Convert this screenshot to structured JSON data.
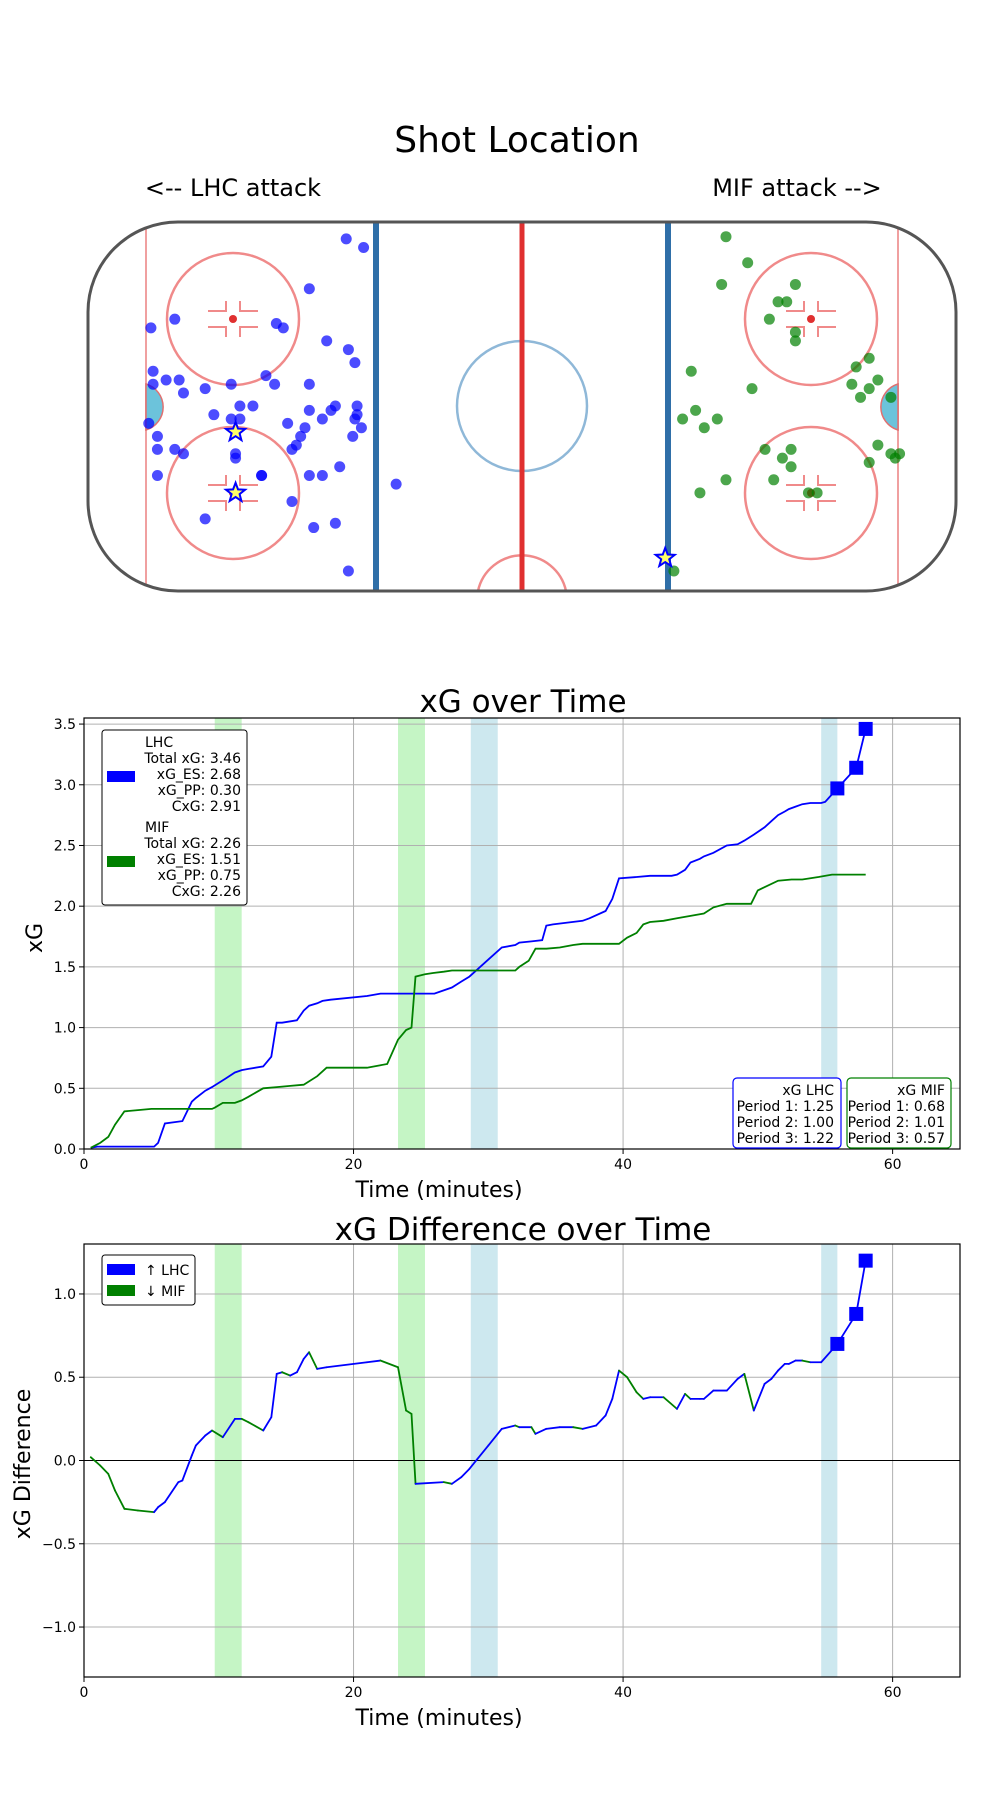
{
  "colors": {
    "lhc": "#0000ff",
    "mif": "#008000",
    "pp_band": "#c5f5c5",
    "pk_band": "#cde8ef",
    "rink_red": "#e03030",
    "rink_blue": "#2f6fa8",
    "crease": "#6cc3db"
  },
  "chart_data": [
    {
      "type": "scatter",
      "title": "Shot Location",
      "left_label": "<-- LHC attack",
      "right_label": "MIF attack -->",
      "xlim": [
        -100,
        100
      ],
      "ylim": [
        -42.5,
        42.5
      ],
      "series": [
        {
          "name": "LHC",
          "color": "#0000ff",
          "points": [
            [
              -40.5,
              38.5
            ],
            [
              -36.5,
              36.5
            ],
            [
              -49,
              27
            ],
            [
              -56.6,
              19
            ],
            [
              -55,
              18
            ],
            [
              -85.5,
              18
            ],
            [
              -80,
              20
            ],
            [
              -40,
              13
            ],
            [
              -45,
              15
            ],
            [
              -38.5,
              10
            ],
            [
              -85,
              8
            ],
            [
              -82,
              6
            ],
            [
              -79,
              6
            ],
            [
              -78,
              3
            ],
            [
              -85,
              5
            ],
            [
              -73,
              4
            ],
            [
              -67,
              5
            ],
            [
              -65,
              0
            ],
            [
              -67,
              -3
            ],
            [
              -71,
              -2
            ],
            [
              -59,
              7
            ],
            [
              -57,
              5
            ],
            [
              -49,
              5
            ],
            [
              -49,
              -1
            ],
            [
              -46,
              -3
            ],
            [
              -44,
              -1
            ],
            [
              -43,
              0
            ],
            [
              -38,
              0
            ],
            [
              -38,
              -2
            ],
            [
              -38.5,
              -3
            ],
            [
              -37,
              -5
            ],
            [
              -39,
              -7
            ],
            [
              -62,
              0
            ],
            [
              -65,
              -3
            ],
            [
              -54,
              -4
            ],
            [
              -51,
              -7
            ],
            [
              -50,
              -5
            ],
            [
              -52,
              -9
            ],
            [
              -53,
              -10
            ],
            [
              -84,
              -7
            ],
            [
              -80,
              -10
            ],
            [
              -84,
              -10
            ],
            [
              -78,
              -11
            ],
            [
              -86,
              -4
            ],
            [
              -66,
              -12
            ],
            [
              -60,
              -16
            ],
            [
              -49,
              -16
            ],
            [
              -46,
              -16
            ],
            [
              -42,
              -14
            ],
            [
              -84,
              -16
            ],
            [
              -60,
              -16
            ],
            [
              -53,
              -22
            ],
            [
              -73,
              -26
            ],
            [
              -48,
              -28
            ],
            [
              -43,
              -27
            ],
            [
              -40,
              -38
            ],
            [
              -29,
              -18
            ],
            [
              -66,
              -11
            ]
          ],
          "stars": [
            [
              -66,
              -6
            ],
            [
              -66,
              -20
            ],
            [
              33,
              -35
            ]
          ]
        },
        {
          "name": "MIF",
          "color": "#008000",
          "points": [
            [
              47,
              39
            ],
            [
              52,
              33
            ],
            [
              46,
              28
            ],
            [
              63,
              28
            ],
            [
              59,
              24
            ],
            [
              61,
              24
            ],
            [
              57,
              20
            ],
            [
              63,
              17
            ],
            [
              63,
              15
            ],
            [
              80,
              11
            ],
            [
              77,
              9
            ],
            [
              82,
              6
            ],
            [
              80,
              4
            ],
            [
              76,
              5
            ],
            [
              78,
              2
            ],
            [
              85,
              2
            ],
            [
              39,
              8
            ],
            [
              53,
              4
            ],
            [
              37,
              -3
            ],
            [
              40,
              -1
            ],
            [
              42,
              -5
            ],
            [
              62,
              -10
            ],
            [
              60,
              -12
            ],
            [
              56,
              -10
            ],
            [
              82,
              -9
            ],
            [
              85,
              -11
            ],
            [
              87,
              -11
            ],
            [
              86,
              -12
            ],
            [
              80,
              -13
            ],
            [
              62,
              -14
            ],
            [
              58,
              -17
            ],
            [
              68,
              -20
            ],
            [
              66,
              -20
            ],
            [
              47,
              -17
            ],
            [
              41,
              -20
            ],
            [
              35,
              -38
            ],
            [
              45,
              -3
            ]
          ]
        }
      ]
    },
    {
      "type": "line",
      "title": "xG over Time",
      "xlabel": "Time (minutes)",
      "ylabel": "xG",
      "xlim": [
        0,
        65
      ],
      "ylim": [
        0,
        3.55
      ],
      "xticks": [
        0,
        20,
        40,
        60
      ],
      "yticks": [
        0.0,
        0.5,
        1.0,
        1.5,
        2.0,
        2.5,
        3.0,
        3.5
      ],
      "xtick_labels": [
        "0",
        "20",
        "40",
        "60"
      ],
      "ytick_labels": [
        "0.0",
        "0.5",
        "1.0",
        "1.5",
        "2.0",
        "2.5",
        "3.0",
        "3.5"
      ],
      "pp_bands": [
        [
          9.7,
          11.7
        ],
        [
          23.3,
          25.3
        ]
      ],
      "pk_bands": [
        [
          28.7,
          30.7
        ],
        [
          54.7,
          55.9
        ]
      ],
      "series": [
        {
          "name": "LHC",
          "color": "#0000ff",
          "x": [
            0.5,
            1,
            1.5,
            2,
            3,
            5.2,
            5.5,
            6,
            7.3,
            8,
            8.3,
            9,
            9.5,
            10.5,
            11.2,
            11.7,
            12.2,
            13.3,
            13.9,
            14.3,
            14.7,
            15.8,
            16.3,
            16.7,
            17.3,
            17.7,
            18.3,
            21,
            22,
            24,
            26,
            27.3,
            28,
            28.6,
            29.2,
            30,
            31,
            32,
            32.3,
            33.2,
            34,
            34.3,
            34.8,
            37,
            37.5,
            38.7,
            39.2,
            39.7,
            41,
            42,
            43,
            43.6,
            44,
            44.6,
            45,
            45.7,
            46,
            46.7,
            47.7,
            48.5,
            49,
            49.7,
            50.5,
            51,
            51.5,
            52,
            52.3,
            52.8,
            53.3,
            53.9,
            54.7,
            55,
            55.9,
            57.3,
            58
          ],
          "y": [
            0.01,
            0.02,
            0.02,
            0.02,
            0.02,
            0.02,
            0.05,
            0.21,
            0.23,
            0.39,
            0.42,
            0.48,
            0.51,
            0.58,
            0.63,
            0.65,
            0.66,
            0.68,
            0.76,
            1.04,
            1.04,
            1.06,
            1.14,
            1.18,
            1.2,
            1.22,
            1.23,
            1.26,
            1.28,
            1.28,
            1.28,
            1.33,
            1.38,
            1.42,
            1.48,
            1.56,
            1.66,
            1.68,
            1.7,
            1.71,
            1.72,
            1.84,
            1.85,
            1.88,
            1.9,
            1.96,
            2.06,
            2.23,
            2.24,
            2.25,
            2.25,
            2.25,
            2.26,
            2.3,
            2.36,
            2.39,
            2.41,
            2.44,
            2.5,
            2.51,
            2.54,
            2.59,
            2.65,
            2.7,
            2.75,
            2.78,
            2.8,
            2.82,
            2.84,
            2.85,
            2.85,
            2.86,
            2.97,
            3.14,
            3.46
          ]
        },
        {
          "name": "MIF",
          "color": "#008000",
          "x": [
            0.5,
            1.2,
            1.8,
            2.3,
            3,
            4,
            5,
            6,
            7,
            8,
            9,
            9.5,
            9.7,
            10.3,
            11.2,
            11.7,
            12.2,
            13.3,
            14.3,
            15.3,
            16.3,
            17.3,
            18,
            21,
            22,
            22.5,
            23.3,
            23.9,
            24.3,
            24.6,
            25.3,
            25.9,
            26.7,
            27.3,
            28.3,
            29.2,
            30,
            31,
            32,
            32.3,
            33,
            33.5,
            34.3,
            35.3,
            36.3,
            37,
            38,
            39.7,
            40.3,
            41,
            41.5,
            42,
            43,
            44,
            45,
            46,
            46.7,
            47.7,
            48.7,
            49.5,
            50,
            51.5,
            52.5,
            53.3,
            54.5,
            55.5,
            56.5,
            58
          ],
          "y": [
            0.01,
            0.05,
            0.1,
            0.2,
            0.31,
            0.32,
            0.33,
            0.33,
            0.33,
            0.33,
            0.33,
            0.33,
            0.34,
            0.38,
            0.38,
            0.4,
            0.43,
            0.5,
            0.51,
            0.52,
            0.53,
            0.6,
            0.67,
            0.67,
            0.69,
            0.7,
            0.9,
            0.98,
            1.0,
            1.42,
            1.44,
            1.45,
            1.46,
            1.47,
            1.47,
            1.47,
            1.47,
            1.47,
            1.47,
            1.5,
            1.55,
            1.65,
            1.65,
            1.66,
            1.68,
            1.69,
            1.69,
            1.69,
            1.74,
            1.78,
            1.85,
            1.87,
            1.88,
            1.9,
            1.92,
            1.94,
            1.99,
            2.02,
            2.02,
            2.02,
            2.13,
            2.21,
            2.22,
            2.22,
            2.24,
            2.26,
            2.26,
            2.26
          ]
        }
      ],
      "markers": {
        "x": [
          55.9,
          57.3,
          58.0
        ],
        "y": [
          2.97,
          3.14,
          3.46
        ]
      },
      "legend": {
        "position": "top-left",
        "lhc_lines": [
          "LHC",
          "Total xG: 3.46",
          "xG_ES: 2.68",
          "xG_PP: 0.30",
          "CxG: 2.91"
        ],
        "mif_lines": [
          "MIF",
          "Total xG: 2.26",
          "xG_ES: 1.51",
          "xG_PP: 0.75",
          "CxG: 2.26"
        ]
      },
      "period_boxes": {
        "lhc": [
          "xG LHC",
          "Period 1: 1.25",
          "Period 2: 1.00",
          "Period 3: 1.22"
        ],
        "mif": [
          "xG MIF",
          "Period 1: 0.68",
          "Period 2: 1.01",
          "Period 3: 0.57"
        ]
      }
    },
    {
      "type": "line",
      "title": "xG Difference over Time",
      "xlabel": "Time (minutes)",
      "ylabel": "xG Difference",
      "xlim": [
        0,
        65
      ],
      "ylim": [
        -1.3,
        1.3
      ],
      "xticks": [
        0,
        20,
        40,
        60
      ],
      "yticks": [
        -1.0,
        -0.5,
        0.0,
        0.5,
        1.0
      ],
      "xtick_labels": [
        "0",
        "20",
        "40",
        "60"
      ],
      "ytick_labels": [
        "−1.0",
        "−0.5",
        "0.0",
        "0.5",
        "1.0"
      ],
      "pp_bands": [
        [
          9.7,
          11.7
        ],
        [
          23.3,
          25.3
        ]
      ],
      "pk_bands": [
        [
          28.7,
          30.7
        ],
        [
          54.7,
          55.9
        ]
      ],
      "series": [
        {
          "name": "diff",
          "x": [
            0.5,
            1.2,
            1.8,
            2.3,
            3,
            4,
            5.2,
            5.5,
            6,
            7,
            7.3,
            8,
            8.3,
            9,
            9.5,
            10.3,
            11.2,
            11.7,
            12.2,
            13.3,
            13.9,
            14.3,
            14.7,
            15.3,
            15.8,
            16.3,
            16.7,
            17.3,
            18,
            21,
            22,
            23.3,
            23.9,
            24.3,
            24.6,
            26.7,
            27.3,
            28,
            28.6,
            29.2,
            30,
            31,
            32,
            32.3,
            33.2,
            33.5,
            34.3,
            35.3,
            36.3,
            37,
            38,
            38.7,
            39.2,
            39.7,
            40.3,
            41,
            41.5,
            42,
            43,
            44,
            44.6,
            45,
            45.7,
            46,
            46.7,
            47.7,
            48.5,
            49,
            49.7,
            50.5,
            51,
            51.5,
            52,
            52.3,
            52.8,
            53.3,
            53.9,
            54.7,
            55.9,
            57.3,
            58
          ],
          "y": [
            0.02,
            -0.03,
            -0.08,
            -0.18,
            -0.29,
            -0.3,
            -0.31,
            -0.28,
            -0.25,
            -0.13,
            -0.12,
            0.03,
            0.09,
            0.15,
            0.18,
            0.14,
            0.25,
            0.25,
            0.23,
            0.18,
            0.26,
            0.52,
            0.53,
            0.51,
            0.53,
            0.61,
            0.65,
            0.55,
            0.56,
            0.59,
            0.6,
            0.56,
            0.3,
            0.28,
            -0.14,
            -0.13,
            -0.14,
            -0.1,
            -0.05,
            0.01,
            0.09,
            0.19,
            0.21,
            0.2,
            0.2,
            0.16,
            0.19,
            0.2,
            0.2,
            0.19,
            0.21,
            0.27,
            0.37,
            0.54,
            0.5,
            0.41,
            0.37,
            0.38,
            0.38,
            0.31,
            0.4,
            0.37,
            0.37,
            0.37,
            0.42,
            0.42,
            0.49,
            0.52,
            0.3,
            0.46,
            0.49,
            0.54,
            0.58,
            0.58,
            0.6,
            0.6,
            0.59,
            0.59,
            0.7,
            0.88,
            1.2
          ]
        }
      ],
      "markers": {
        "x": [
          55.9,
          57.3,
          58.0
        ],
        "y": [
          0.7,
          0.88,
          1.2
        ]
      },
      "legend": {
        "position": "top-left",
        "lhc_label": "↑ LHC",
        "mif_label": "↓ MIF"
      }
    }
  ]
}
